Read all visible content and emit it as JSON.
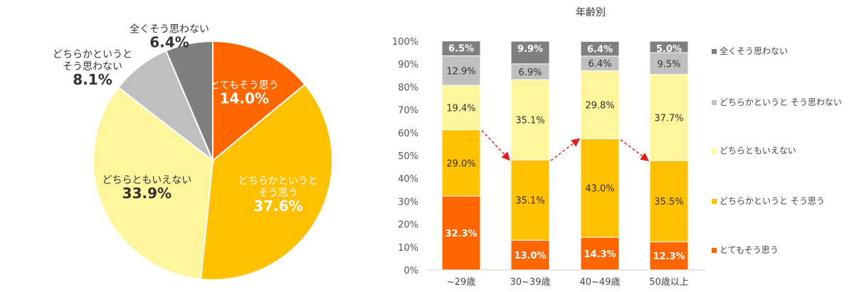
{
  "colors": {
    "very_much": "#FF6600",
    "somewhat_yes": "#FFC000",
    "neither": "#FFF59D",
    "somewhat_no": "#BFBFBF",
    "not_at_all": "#7F7F7F",
    "trend_arrow": "#E02020"
  },
  "chart_data": [
    {
      "type": "pie",
      "title": "",
      "slices": [
        {
          "label": "とてもそう思う",
          "label_lines": [
            "とてもそう思う"
          ],
          "value": 14.0,
          "value_label": "14.0%",
          "color_key": "very_much"
        },
        {
          "label": "どちらかというと そう思う",
          "label_lines": [
            "どちらかというと",
            "そう思う"
          ],
          "value": 37.6,
          "value_label": "37.6%",
          "color_key": "somewhat_yes"
        },
        {
          "label": "どちらともいえない",
          "label_lines": [
            "どちらともいえない"
          ],
          "value": 33.9,
          "value_label": "33.9%",
          "color_key": "neither"
        },
        {
          "label": "どちらかというと そう思わない",
          "label_lines": [
            "どちらかというと",
            "そう思わない"
          ],
          "value": 8.1,
          "value_label": "8.1%",
          "color_key": "somewhat_no"
        },
        {
          "label": "全くそう思わない",
          "label_lines": [
            "全くそう思わない"
          ],
          "value": 6.4,
          "value_label": "6.4%",
          "color_key": "not_at_all"
        }
      ]
    },
    {
      "type": "bar",
      "stacked": true,
      "title": "年齢別",
      "categories": [
        "~29歳",
        "30~39歳",
        "40~49歳",
        "50歳以上"
      ],
      "ylim": [
        0,
        100
      ],
      "yticks": [
        "0%",
        "10%",
        "20%",
        "30%",
        "40%",
        "50%",
        "60%",
        "70%",
        "80%",
        "90%",
        "100%"
      ],
      "series": [
        {
          "name": "とてもそう思う",
          "color_key": "very_much",
          "values": [
            32.3,
            13.0,
            14.3,
            12.3
          ],
          "labels": [
            "32.3%",
            "13.0%",
            "14.3%",
            "12.3%"
          ]
        },
        {
          "name": "どちらかというと そう思う",
          "color_key": "somewhat_yes",
          "values": [
            29.0,
            35.1,
            43.0,
            35.5
          ],
          "labels": [
            "29.0%",
            "35.1%",
            "43.0%",
            "35.5%"
          ]
        },
        {
          "name": "どちらともいえない",
          "color_key": "neither",
          "values": [
            19.4,
            35.1,
            29.8,
            37.7
          ],
          "labels": [
            "19.4%",
            "35.1%",
            "29.8%",
            "37.7%"
          ]
        },
        {
          "name": "どちらかというと そう思わない",
          "color_key": "somewhat_no",
          "values": [
            12.9,
            6.9,
            6.4,
            9.5
          ],
          "labels": [
            "12.9%",
            "6.9%",
            "6.4%",
            "9.5%"
          ]
        },
        {
          "name": "全くそう思わない",
          "color_key": "not_at_all",
          "values": [
            6.5,
            9.9,
            6.4,
            5.0
          ],
          "labels": [
            "6.5%",
            "9.9%",
            "6.4%",
            "5.0%"
          ]
        }
      ],
      "legend": {
        "placement": "right",
        "order": [
          "全くそう思わない",
          "どちらかというと そう思わない",
          "どちらともいえない",
          "どちらかというと そう思う",
          "とてもそう思う"
        ]
      },
      "annotations": [
        {
          "type": "arrow",
          "from_category": "~29歳",
          "to_category": "30~39歳",
          "style": "dashed"
        },
        {
          "type": "arrow",
          "from_category": "30~39歳",
          "to_category": "40~49歳",
          "style": "dashed"
        },
        {
          "type": "arrow",
          "from_category": "40~49歳",
          "to_category": "50歳以上",
          "style": "dashed"
        }
      ]
    }
  ]
}
